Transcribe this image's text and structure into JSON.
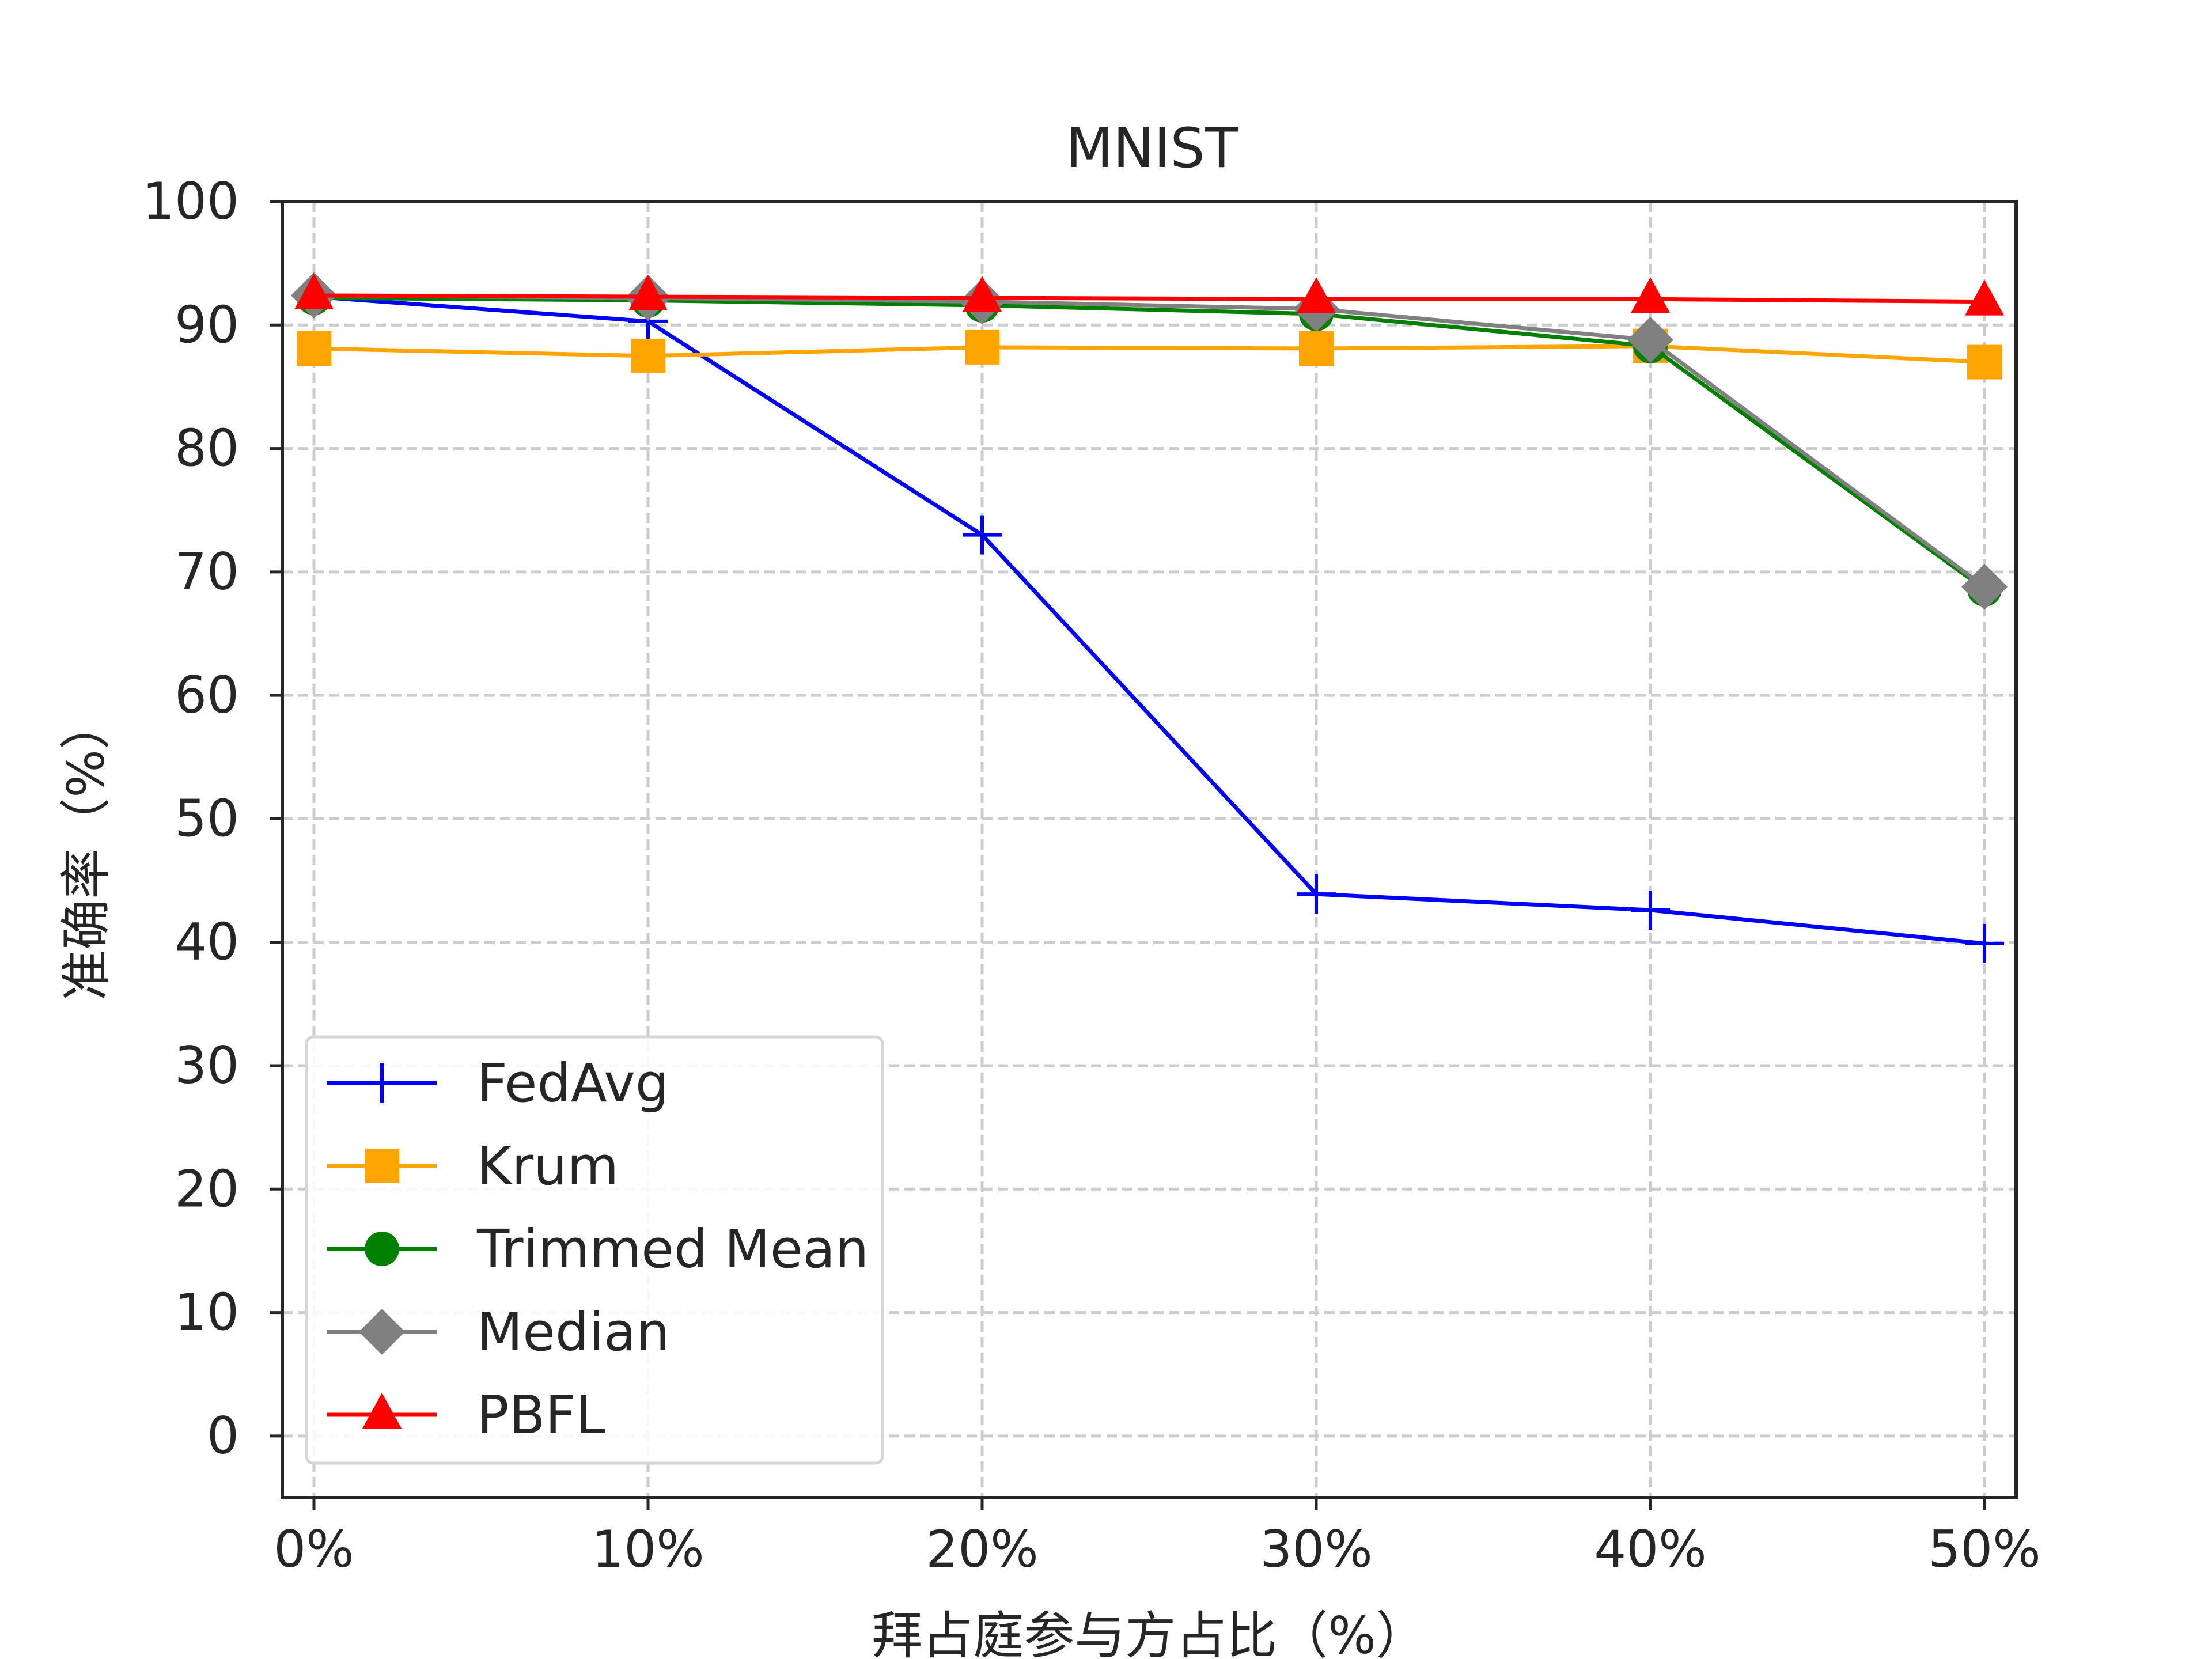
{
  "chart_data": {
    "type": "line",
    "title": "MNIST",
    "xlabel": "拜占庭参与方占比（%）",
    "ylabel": "准确率（%）",
    "categories": [
      "0%",
      "10%",
      "20%",
      "30%",
      "40%",
      "50%"
    ],
    "y_ticks": [
      "0",
      "10",
      "20",
      "30",
      "40",
      "50",
      "60",
      "70",
      "80",
      "90",
      "100"
    ],
    "ylim": [
      -5,
      100
    ],
    "grid": true,
    "legend_position": "lower-left",
    "series": [
      {
        "name": "FedAvg",
        "color": "#0000ff",
        "marker": "plus",
        "values": [
          92.3,
          90.3,
          73.0,
          43.9,
          42.6,
          39.9
        ]
      },
      {
        "name": "Krum",
        "color": "#ffa500",
        "marker": "square",
        "values": [
          88.1,
          87.5,
          88.2,
          88.1,
          88.3,
          87.0
        ]
      },
      {
        "name": "Trimmed Mean",
        "color": "#008000",
        "marker": "circle",
        "values": [
          92.2,
          92.0,
          91.6,
          90.9,
          88.3,
          68.6
        ]
      },
      {
        "name": "Median",
        "color": "#808080",
        "marker": "diamond",
        "values": [
          92.4,
          92.2,
          91.9,
          91.3,
          88.8,
          68.8
        ]
      },
      {
        "name": "PBFL",
        "color": "#ff0000",
        "marker": "triangle",
        "values": [
          92.4,
          92.3,
          92.2,
          92.1,
          92.1,
          91.9
        ]
      }
    ]
  }
}
